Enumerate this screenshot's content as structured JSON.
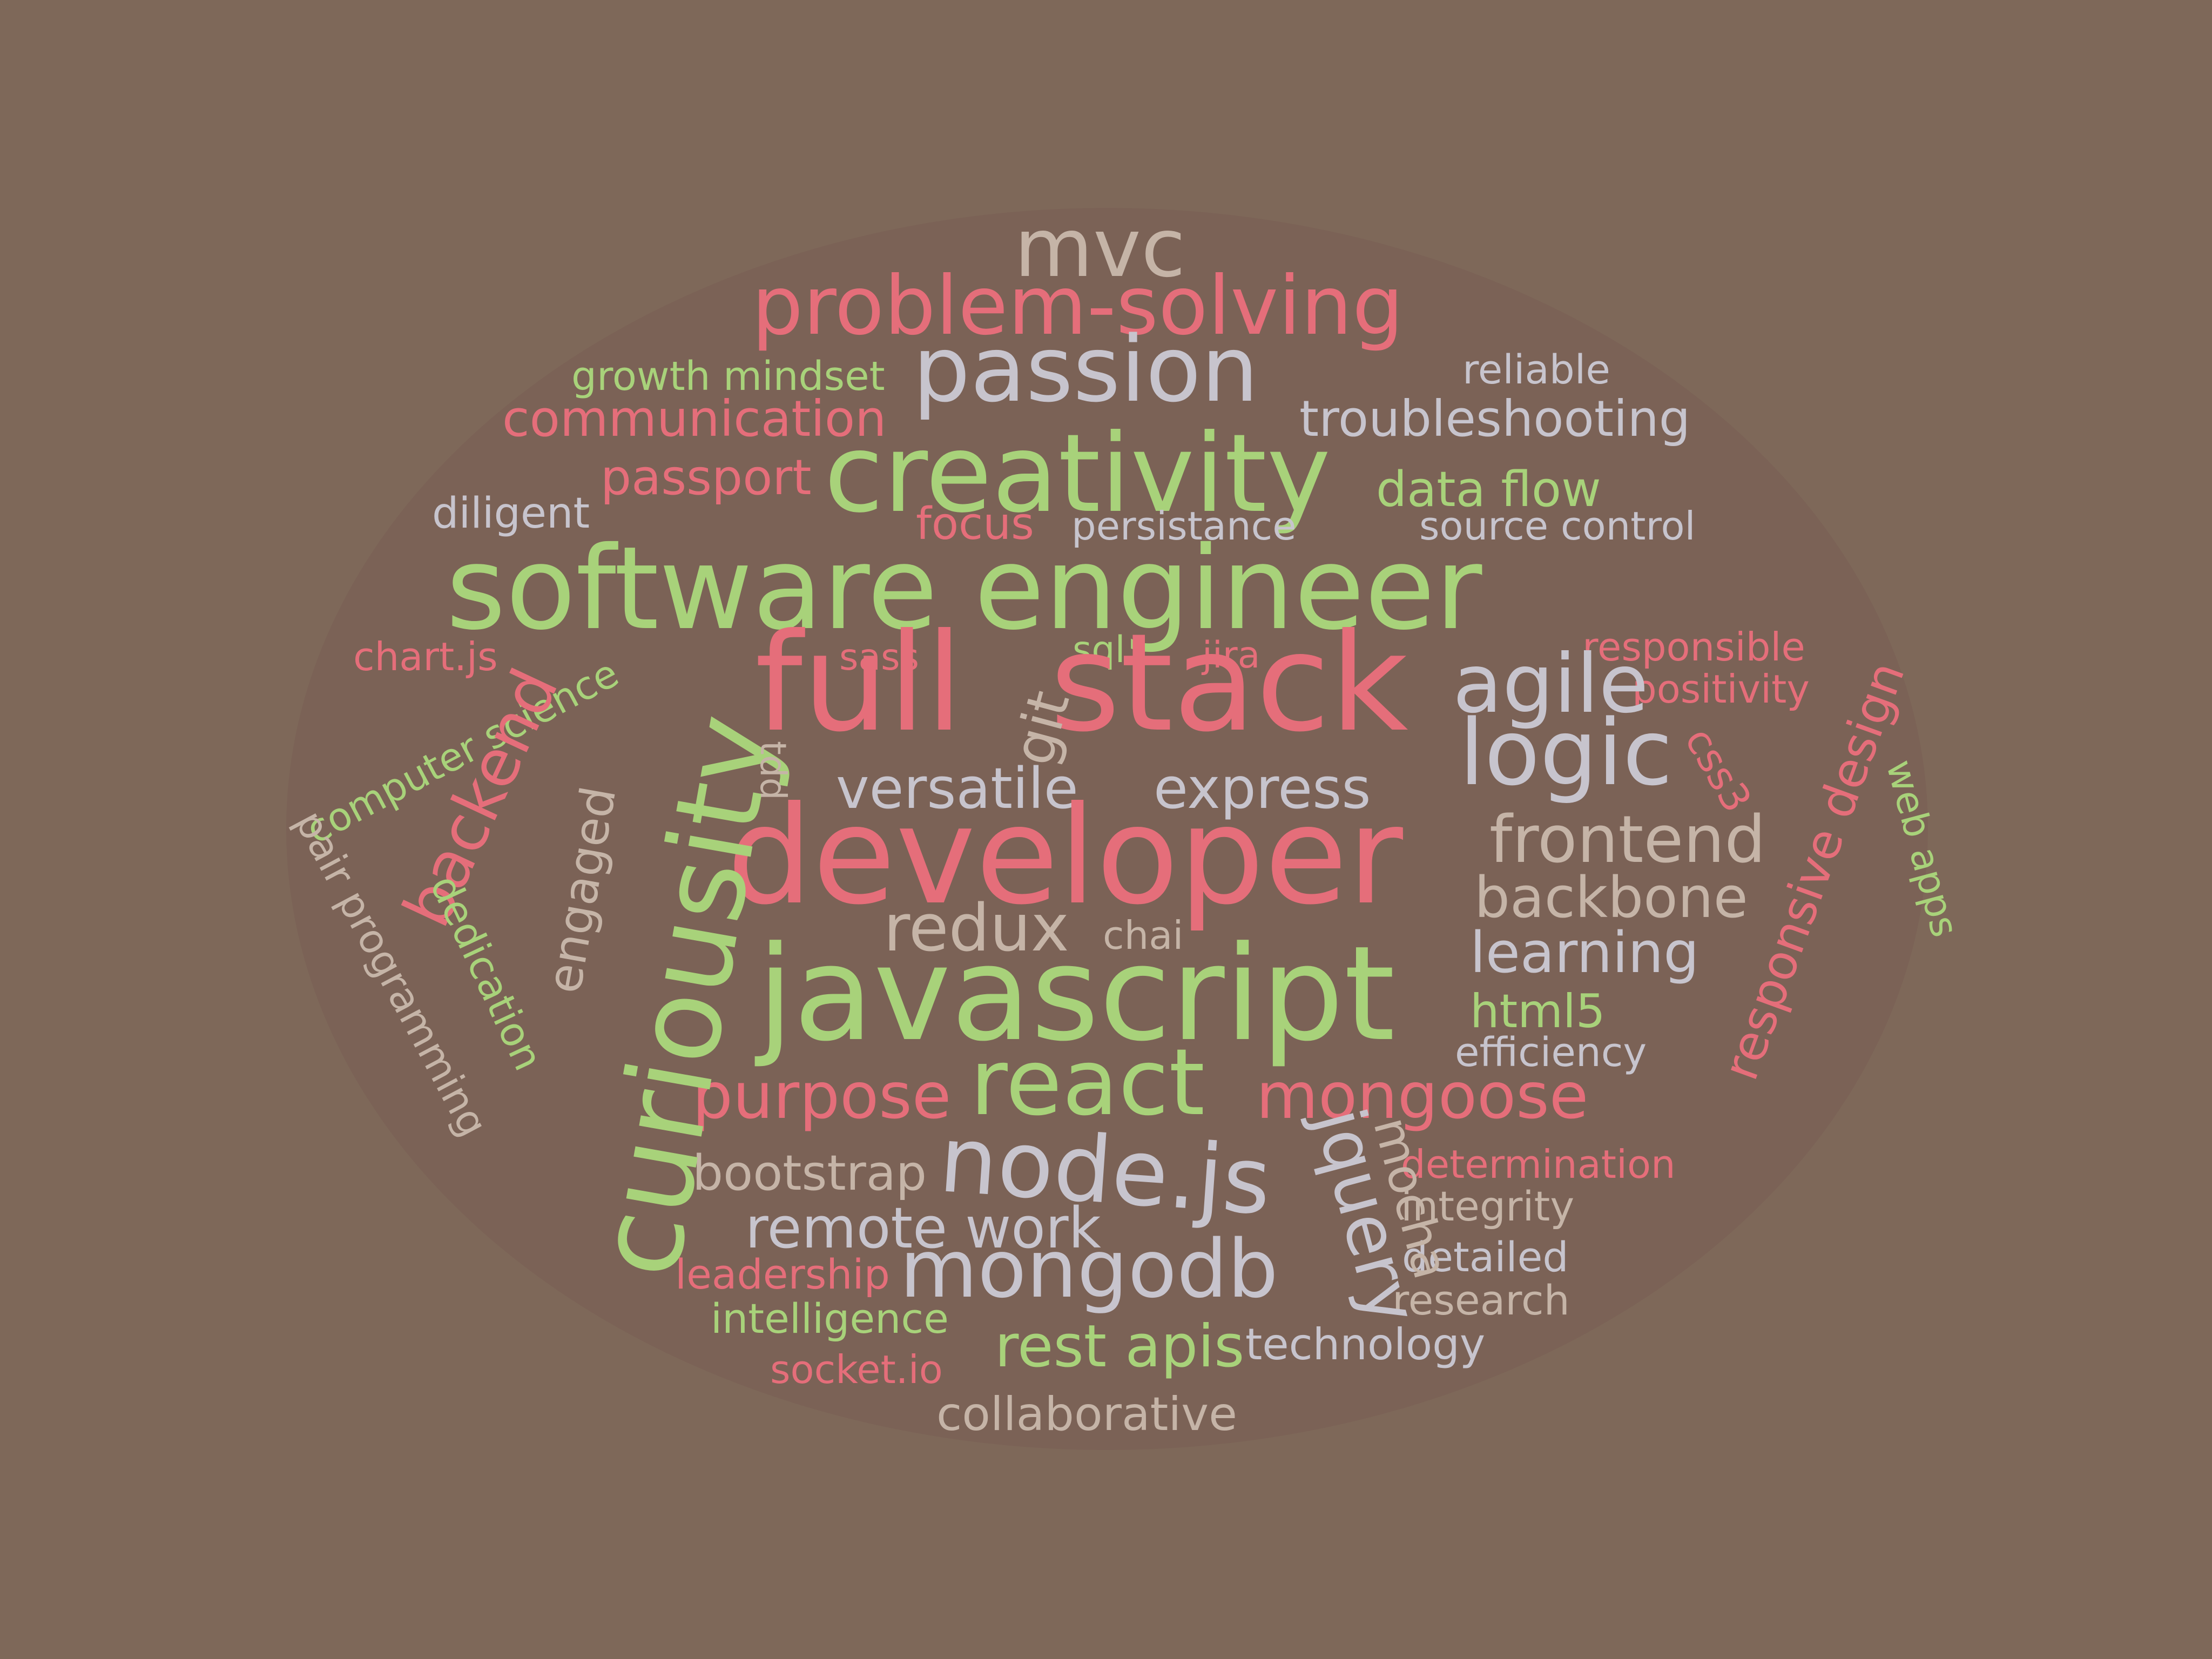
{
  "palette": {
    "background": "#7e6859",
    "cloud_shape": "#7b6256",
    "pink": "#e56e7a",
    "green": "#a8d27a",
    "gray": "#c7c4cd",
    "tan": "#c5b4a7"
  },
  "words": {
    "mvc": "mvc",
    "problem_solving": "problem-solving",
    "passion": "passion",
    "growth_mindset": "growth mindset",
    "reliable": "reliable",
    "communication": "communication",
    "troubleshooting": "troubleshooting",
    "creativity": "creativity",
    "passport": "passport",
    "data_flow": "data flow",
    "diligent": "diligent",
    "focus": "focus",
    "persistance": "persistance",
    "source_control": "source control",
    "software_engineer": "software engineer",
    "chart_js": "chart.js",
    "computer_science": "computer science",
    "sass": "sass",
    "sql": "sql",
    "jira": "jira",
    "responsible": "responsible",
    "positivity": "positivity",
    "full": "full",
    "stack": "stack",
    "git": "git",
    "agile": "agile",
    "logic": "logic",
    "css3": "css3",
    "responsive_design": "responsive design",
    "web_apps": "web apps",
    "backend": "backend",
    "tdd": "tdd",
    "curiousity": "curiousity",
    "versatile": "versatile",
    "express": "express",
    "developer": "developer",
    "frontend": "frontend",
    "engaged": "engaged",
    "pair_programming": "pair programming",
    "dedication": "dedication",
    "backbone": "backbone",
    "redux": "redux",
    "chai": "chai",
    "learning": "learning",
    "javascript": "javascript",
    "html5": "html5",
    "efficiency": "efficiency",
    "purpose": "purpose",
    "react": "react",
    "mongoose": "mongoose",
    "node_js": "node.js",
    "jquery": "jquery",
    "mocha": "mocha",
    "bootstrap": "bootstrap",
    "determination": "determination",
    "integrity": "integrity",
    "remote_work": "remote work",
    "detailed": "detailed",
    "leadership": "leadership",
    "mongodb": "mongodb",
    "research": "research",
    "intelligence": "intelligence",
    "rest_apis": "rest apis",
    "technology": "technology",
    "socket_io": "socket.io",
    "collaborative": "collaborative"
  }
}
